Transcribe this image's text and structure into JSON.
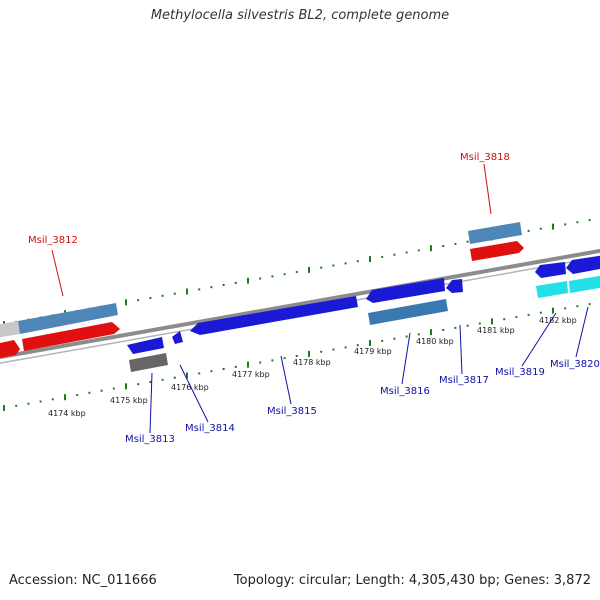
{
  "title": "Methylocella silvestris BL2, complete genome",
  "footer": {
    "accession": "Accession: NC_011666",
    "summary": "Topology: circular; Length: 4,305,430 bp; Genes: 3,872"
  },
  "colors": {
    "backbone": "#8c8c8c",
    "tick": "#1f7a1f",
    "forward_rna": "#e01010",
    "forward_cds": "#4f86b8",
    "reverse_cds": "#1a1ad6",
    "reverse_pseudo": "#3a78b0",
    "reverse_grey": "#666666",
    "reverse_cyan": "#22e0e8",
    "gray_feature": "#c8c8c8",
    "label_forward": "#cc1010",
    "label_reverse": "#1010a8"
  },
  "scale": {
    "labels": [
      "4174 kbp",
      "4175 kbp",
      "4176 kbp",
      "4177 kbp",
      "4178 kbp",
      "4179 kbp",
      "4180 kbp",
      "4181 kbp",
      "4182 kbp"
    ]
  },
  "genes": {
    "forward": [
      "Msil_3812",
      "Msil_3818"
    ],
    "reverse": [
      "Msil_3813",
      "Msil_3814",
      "Msil_3815",
      "Msil_3816",
      "Msil_3817",
      "Msil_3819",
      "Msil_3820"
    ]
  }
}
